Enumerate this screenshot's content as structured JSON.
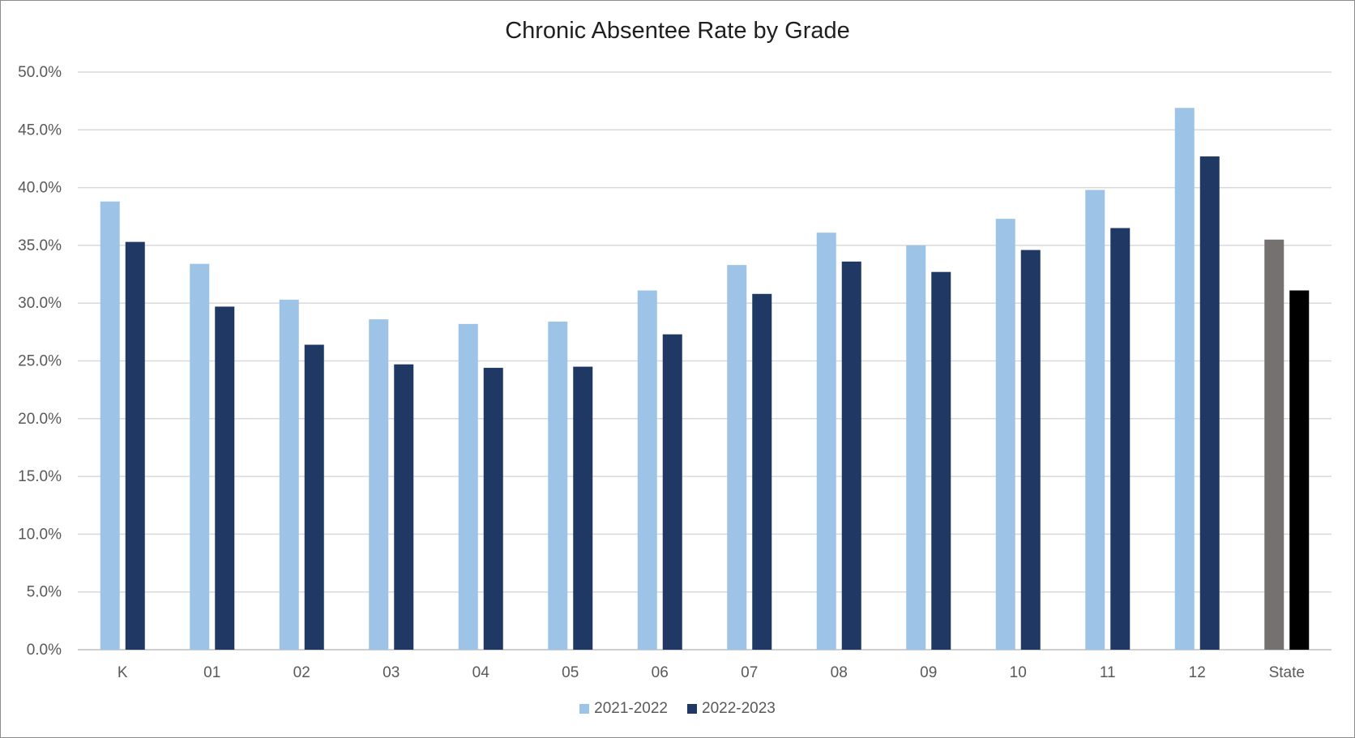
{
  "chart_data": {
    "type": "bar",
    "title": "Chronic Absentee Rate by Grade",
    "xlabel": "",
    "ylabel": "",
    "categories": [
      "K",
      "01",
      "02",
      "03",
      "04",
      "05",
      "06",
      "07",
      "08",
      "09",
      "10",
      "11",
      "12",
      "State"
    ],
    "ylim": [
      0,
      50
    ],
    "yticks": [
      "0.0%",
      "5.0%",
      "10.0%",
      "15.0%",
      "20.0%",
      "25.0%",
      "30.0%",
      "35.0%",
      "40.0%",
      "45.0%",
      "50.0%"
    ],
    "grid": true,
    "legend_position": "bottom",
    "series": [
      {
        "name": "2021-2022",
        "color": "#9dc3e6",
        "highlight": {
          "category": "State",
          "color": "#767171"
        },
        "values": [
          38.8,
          33.4,
          30.3,
          28.6,
          28.2,
          28.4,
          31.1,
          33.3,
          36.1,
          35.0,
          37.3,
          39.8,
          46.9,
          35.5
        ]
      },
      {
        "name": "2022-2023",
        "color": "#1f3864",
        "highlight": {
          "category": "State",
          "color": "#000000"
        },
        "values": [
          35.3,
          29.7,
          26.4,
          24.7,
          24.4,
          24.5,
          27.3,
          30.8,
          33.6,
          32.7,
          34.6,
          36.5,
          42.7,
          31.1
        ]
      }
    ]
  }
}
